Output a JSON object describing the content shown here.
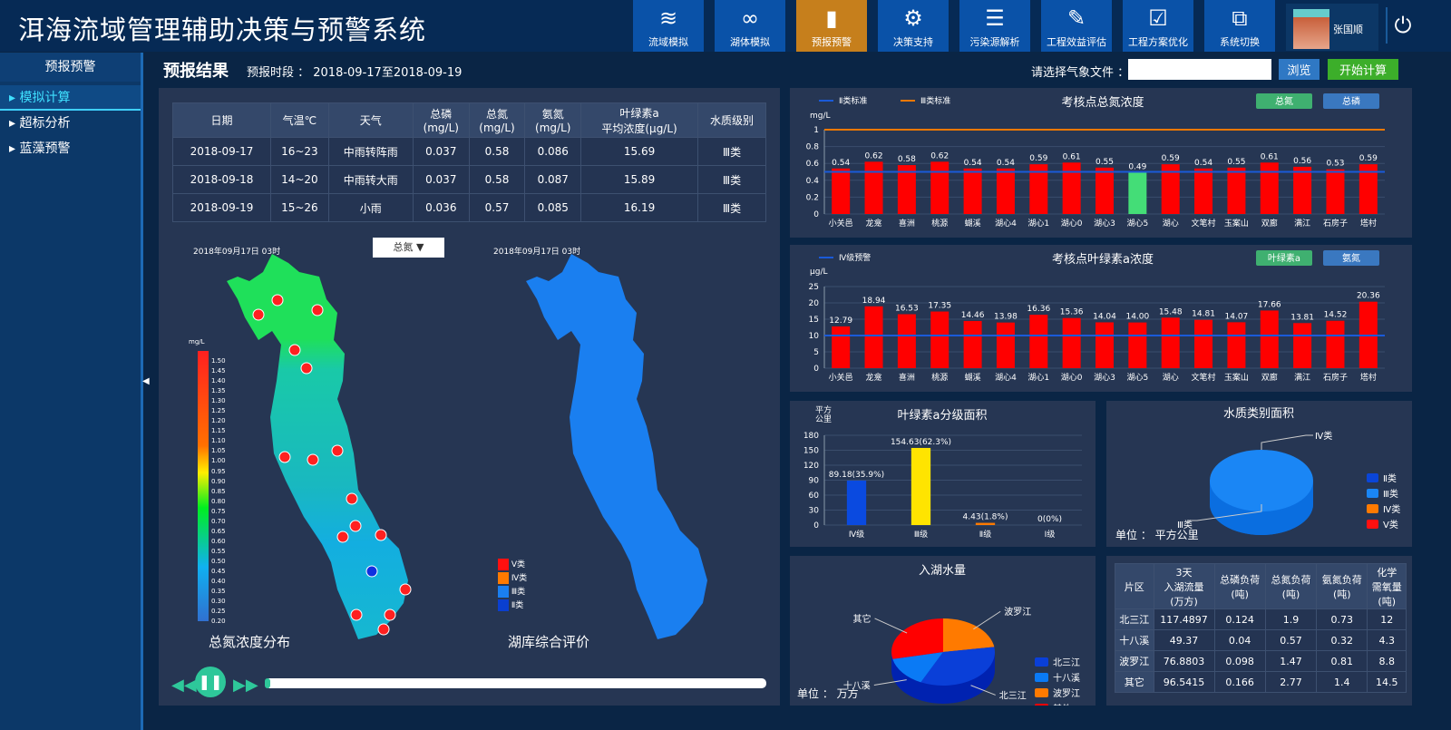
{
  "app": {
    "title": "洱海流域管理辅助决策与预警系统"
  },
  "nav": [
    {
      "label": "流域模拟",
      "icon": "river-icon"
    },
    {
      "label": "湖体模拟",
      "icon": "lake-icon"
    },
    {
      "label": "预报预警",
      "icon": "warning-card-icon",
      "active": true
    },
    {
      "label": "决策支持",
      "icon": "team-gear-icon"
    },
    {
      "label": "污染源解析",
      "icon": "list-icon"
    },
    {
      "label": "工程效益评估",
      "icon": "edit-icon"
    },
    {
      "label": "工程方案优化",
      "icon": "clipboard-check-icon"
    },
    {
      "label": "系统切换",
      "icon": "switch-icon"
    }
  ],
  "user": {
    "name": "张国顺"
  },
  "sidebar": {
    "title": "预报预警",
    "items": [
      {
        "label": "模拟计算",
        "active": true
      },
      {
        "label": "超标分析"
      },
      {
        "label": "蓝藻预警"
      }
    ]
  },
  "topbar": {
    "title": "预报结果",
    "period": "预报时段 ： 2018-09-17至2018-09-19",
    "file_label": "请选择气象文件 ：",
    "file_value": "",
    "browse": "浏览",
    "start": "开始计算"
  },
  "forecast_table": {
    "headers": [
      "日期",
      "气温℃",
      "天气",
      "总磷\n(mg/L)",
      "总氮\n(mg/L)",
      "氨氮\n(mg/L)",
      "叶绿素a\n平均浓度(μg/L)",
      "水质级别"
    ],
    "rows": [
      [
        "2018-09-17",
        "16~23",
        "中雨转阵雨",
        "0.037",
        "0.58",
        "0.086",
        "15.69",
        "Ⅲ类"
      ],
      [
        "2018-09-18",
        "14~20",
        "中雨转大雨",
        "0.037",
        "0.58",
        "0.087",
        "15.89",
        "Ⅲ类"
      ],
      [
        "2018-09-19",
        "15~26",
        "小雨",
        "0.036",
        "0.57",
        "0.085",
        "16.19",
        "Ⅲ类"
      ]
    ]
  },
  "map_left": {
    "time": "2018年09月17日 03时",
    "dropdown": "总氮",
    "caption": "总氮浓度分布",
    "legend_unit": "mg/L",
    "legend_ticks": [
      "1.50",
      "1.45",
      "1.40",
      "1.35",
      "1.30",
      "1.25",
      "1.20",
      "1.15",
      "1.10",
      "1.05",
      "1.00",
      "0.95",
      "0.90",
      "0.85",
      "0.80",
      "0.75",
      "0.70",
      "0.65",
      "0.60",
      "0.55",
      "0.50",
      "0.45",
      "0.40",
      "0.35",
      "0.30",
      "0.25",
      "0.20"
    ]
  },
  "map_right": {
    "time": "2018年09月17日 03时",
    "caption": "湖库综合评价",
    "legend": [
      {
        "label": "Ⅴ类",
        "color": "#ff1010"
      },
      {
        "label": "Ⅳ类",
        "color": "#ff7a00"
      },
      {
        "label": "Ⅲ类",
        "color": "#1a7ff0"
      },
      {
        "label": "Ⅱ类",
        "color": "#0a3fd0"
      }
    ]
  },
  "playback": {
    "progress": 0.01
  },
  "chart_data": [
    {
      "type": "bar",
      "title": "考核点总氮浓度",
      "ylabel": "mg/L",
      "ylim": [
        0,
        1
      ],
      "yticks": [
        "0",
        "0.2",
        "0.4",
        "0.6",
        "0.8",
        "1"
      ],
      "legend": [
        {
          "name": "Ⅱ类标准",
          "value": 0.5,
          "color": "#1a5ad8"
        },
        {
          "name": "Ⅲ类标准",
          "value": 1,
          "color": "#f07800"
        }
      ],
      "buttons": [
        "总氮",
        "总磷"
      ],
      "categories": [
        "小关邑",
        "龙龛",
        "喜洲",
        "桃源",
        "蝴溪",
        "湖心4",
        "湖心1",
        "湖心0",
        "湖心3",
        "湖心5",
        "湖心",
        "文笔村",
        "玉案山",
        "双廊",
        "满江",
        "石房子",
        "塔村"
      ],
      "values": [
        0.54,
        0.62,
        0.58,
        0.62,
        0.54,
        0.54,
        0.59,
        0.61,
        0.55,
        0.49,
        0.59,
        0.54,
        0.55,
        0.61,
        0.56,
        0.53,
        0.59
      ],
      "highlight_color": "#44dd77",
      "bar_color": "#ff0000"
    },
    {
      "type": "bar",
      "title": "考核点叶绿素a浓度",
      "ylabel": "μg/L",
      "ylim": [
        0,
        25
      ],
      "yticks": [
        "0",
        "5",
        "10",
        "15",
        "20",
        "25"
      ],
      "legend": [
        {
          "name": "Ⅳ级预警",
          "value": 10,
          "color": "#1a5ad8"
        }
      ],
      "buttons": [
        "叶绿素a",
        "氨氮"
      ],
      "categories": [
        "小关邑",
        "龙龛",
        "喜洲",
        "桃源",
        "蝴溪",
        "湖心4",
        "湖心1",
        "湖心0",
        "湖心3",
        "湖心5",
        "湖心",
        "文笔村",
        "玉案山",
        "双廊",
        "满江",
        "石房子",
        "塔村"
      ],
      "values": [
        12.79,
        18.94,
        16.53,
        17.35,
        14.46,
        13.98,
        16.36,
        15.36,
        14.04,
        14.0,
        15.48,
        14.81,
        14.07,
        17.66,
        13.81,
        14.52,
        20.36
      ],
      "bar_color": "#ff0000"
    },
    {
      "type": "bar",
      "title": "叶绿素a分级面积",
      "ylabel": "平方\n公里",
      "ylim": [
        0,
        180
      ],
      "yticks": [
        "0",
        "30",
        "60",
        "90",
        "120",
        "150",
        "180"
      ],
      "categories": [
        "Ⅳ级",
        "Ⅲ级",
        "Ⅱ级",
        "Ⅰ级"
      ],
      "values": [
        89.18,
        154.63,
        4.43,
        0
      ],
      "labels": [
        "89.18(35.9%)",
        "154.63(62.3%)",
        "4.43(1.8%)",
        "0(0%)"
      ],
      "colors": [
        "#0a4ae0",
        "#ffe400",
        "#ff7a00",
        "#888888"
      ]
    },
    {
      "type": "pie",
      "title": "水质类别面积",
      "unit": "单位 ： 平方公里",
      "legend": [
        {
          "name": "Ⅱ类",
          "color": "#0a45d8"
        },
        {
          "name": "Ⅲ类",
          "color": "#1a86f5"
        },
        {
          "name": "Ⅳ类",
          "color": "#ff7a00"
        },
        {
          "name": "Ⅴ类",
          "color": "#ff1010"
        }
      ],
      "slice_labels": [
        "Ⅳ类",
        "Ⅲ类"
      ]
    },
    {
      "type": "pie",
      "title": "入湖水量",
      "unit": "单位 ： 万方",
      "slices": [
        {
          "name": "波罗江",
          "value": 76.8803,
          "color": "#ff7a00"
        },
        {
          "name": "北三江",
          "value": 117.4897,
          "color": "#0a3fd8"
        },
        {
          "name": "十八溪",
          "value": 49.37,
          "color": "#0a7af5"
        },
        {
          "name": "其它",
          "value": 96.5415,
          "color": "#ff0000"
        }
      ],
      "legend": [
        {
          "name": "北三江",
          "color": "#0a3fd8"
        },
        {
          "name": "十八溪",
          "color": "#0a7af5"
        },
        {
          "name": "波罗江",
          "color": "#ff7a00"
        },
        {
          "name": "其他",
          "color": "#ff0000"
        }
      ]
    }
  ],
  "load_table": {
    "headers": [
      "片区",
      "3天\n入湖流量\n(万方)",
      "总磷负荷\n(吨)",
      "总氮负荷\n(吨)",
      "氨氮负荷\n(吨)",
      "化学\n需氧量\n(吨)"
    ],
    "rows": [
      [
        "北三江",
        "117.4897",
        "0.124",
        "1.9",
        "0.73",
        "12"
      ],
      [
        "十八溪",
        "49.37",
        "0.04",
        "0.57",
        "0.32",
        "4.3"
      ],
      [
        "波罗江",
        "76.8803",
        "0.098",
        "1.47",
        "0.81",
        "8.8"
      ],
      [
        "其它",
        "96.5415",
        "0.166",
        "2.77",
        "1.4",
        "14.5"
      ]
    ]
  }
}
